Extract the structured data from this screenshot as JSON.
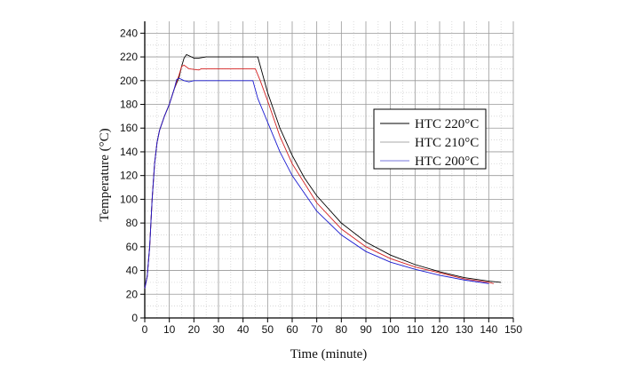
{
  "chart_data": {
    "type": "line",
    "xlabel": "Time (minute)",
    "ylabel": "Temperature (°C)",
    "xlim": [
      0,
      150
    ],
    "ylim": [
      0,
      250
    ],
    "xticks": [
      0,
      10,
      20,
      30,
      40,
      50,
      60,
      70,
      80,
      90,
      100,
      110,
      120,
      130,
      140,
      150
    ],
    "yticks": [
      0,
      20,
      40,
      60,
      80,
      100,
      120,
      140,
      160,
      180,
      200,
      220,
      240
    ],
    "grid": true,
    "legend_position": "right",
    "series": [
      {
        "name": "HTC 220°C",
        "color": "#000000",
        "legend_color": "#000000",
        "x": [
          0,
          1,
          2,
          3,
          4,
          5,
          6,
          8,
          10,
          12,
          14,
          15,
          16,
          17,
          18,
          20,
          22,
          25,
          46,
          48,
          50,
          55,
          60,
          65,
          70,
          80,
          90,
          100,
          110,
          120,
          130,
          140,
          145
        ],
        "y": [
          25,
          35,
          60,
          100,
          130,
          148,
          158,
          170,
          180,
          193,
          203,
          212,
          219,
          222,
          221,
          219,
          219,
          220,
          220,
          205,
          190,
          160,
          137,
          118,
          103,
          80,
          64,
          53,
          45,
          39,
          34,
          31,
          30
        ]
      },
      {
        "name": "HTC 210°C",
        "color": "#d42020",
        "legend_color": "#aaaaaa",
        "x": [
          0,
          1,
          2,
          3,
          4,
          5,
          6,
          8,
          10,
          12,
          14,
          15,
          16,
          18,
          22,
          23,
          45,
          47,
          50,
          55,
          60,
          70,
          80,
          90,
          100,
          110,
          120,
          130,
          140,
          142
        ],
        "y": [
          25,
          35,
          60,
          100,
          130,
          148,
          158,
          170,
          180,
          193,
          205,
          212,
          213,
          210,
          209,
          210,
          210,
          200,
          183,
          153,
          130,
          97,
          75,
          60,
          50,
          43,
          38,
          33,
          30,
          29
        ]
      },
      {
        "name": "HTC 200°C",
        "color": "#1a1ad0",
        "legend_color": "#7777dd",
        "x": [
          0,
          1,
          2,
          3,
          4,
          5,
          6,
          8,
          10,
          12,
          13,
          14,
          16,
          18,
          20,
          44,
          46,
          50,
          55,
          60,
          70,
          80,
          90,
          100,
          110,
          120,
          130,
          140
        ],
        "y": [
          25,
          35,
          60,
          100,
          130,
          148,
          158,
          170,
          180,
          193,
          201,
          202,
          200,
          199,
          200,
          200,
          185,
          165,
          140,
          120,
          90,
          70,
          56,
          47,
          41,
          36,
          32,
          29
        ]
      }
    ]
  }
}
